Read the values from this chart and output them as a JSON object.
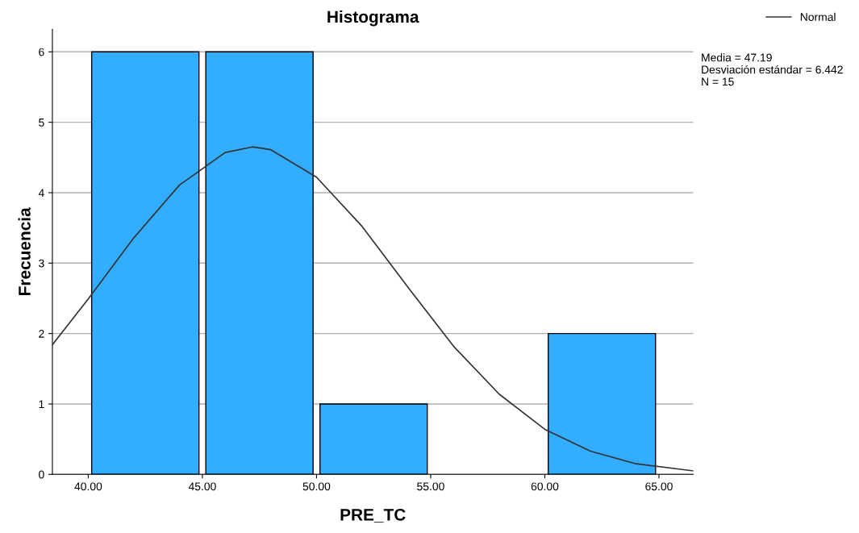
{
  "chart_data": {
    "type": "histogram",
    "title": "Histograma",
    "xlabel": "PRE_TC",
    "ylabel": "Frecuencia",
    "series": [
      {
        "bins": [
          40,
          45,
          50,
          55,
          60,
          65
        ],
        "values": [
          6,
          6,
          1,
          0,
          2
        ],
        "color": "#33adff"
      },
      {
        "type": "line",
        "name": "Normal",
        "color": "#333333",
        "x": [
          38.43,
          40,
          42,
          44,
          46,
          47.19,
          48,
          50,
          52,
          54,
          56,
          58,
          60,
          62,
          64,
          66.5
        ],
        "values": [
          1.84,
          2.49,
          3.36,
          4.11,
          4.57,
          4.65,
          4.61,
          4.22,
          3.52,
          2.66,
          1.82,
          1.14,
          0.64,
          0.33,
          0.15,
          0.05
        ]
      }
    ],
    "xlim": [
      38.43,
      66.5
    ],
    "xticks": [
      {
        "value": 40,
        "label": "40.00"
      },
      {
        "value": 45,
        "label": "45.00"
      },
      {
        "value": 50,
        "label": "50.00"
      },
      {
        "value": 55,
        "label": "55.00"
      },
      {
        "value": 60,
        "label": "60.00"
      },
      {
        "value": 65,
        "label": "65.00"
      }
    ],
    "ylim": [
      0,
      6.32
    ],
    "yticks": [
      0,
      1,
      2,
      3,
      4,
      5,
      6
    ],
    "grid": "y",
    "legend": "top right",
    "marker": "none",
    "line_style": "solid",
    "annotations": [
      "Media = 47.19\nDesviación estándar = 6.442\nN = 15"
    ]
  }
}
